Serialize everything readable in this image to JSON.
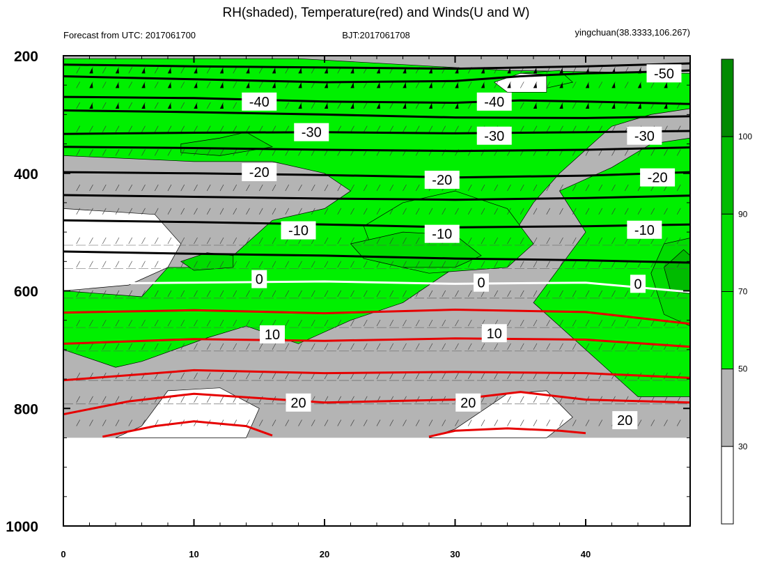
{
  "chart_data": {
    "type": "heatmap",
    "title": "RH(shaded), Temperature(red) and Winds(U and W)",
    "subtitle_left": "Forecast from UTC: 2017061700",
    "subtitle_center": "BJT:2017061708",
    "subtitle_right": "yingchuan(38.3333,106.267)",
    "xlabel": "",
    "ylabel": "",
    "x_range": [
      0,
      48
    ],
    "y_range": [
      200,
      1000
    ],
    "y_reversed": true,
    "x_tick_labels": [
      "0",
      "10",
      "20",
      "30",
      "40"
    ],
    "y_tick_labels": [
      "200",
      "400",
      "600",
      "800",
      "1000"
    ],
    "colorbar": {
      "levels": [
        "30",
        "50",
        "70",
        "90",
        "100"
      ],
      "colors": [
        "#ffffff",
        "#b4b4b4",
        "#00f000",
        "#00dc00",
        "#00bb00",
        "#008a00"
      ]
    },
    "rh_regions": [
      {
        "level": 1,
        "points": [
          [
            0,
            200
          ],
          [
            48,
            200
          ],
          [
            48,
            850
          ],
          [
            0,
            850
          ]
        ]
      },
      {
        "level": 2,
        "points": [
          [
            0,
            205
          ],
          [
            18,
            205
          ],
          [
            26,
            215
          ],
          [
            34,
            225
          ],
          [
            48,
            230
          ],
          [
            48,
            290
          ],
          [
            45,
            300
          ],
          [
            42,
            320
          ],
          [
            40,
            360
          ],
          [
            38,
            400
          ],
          [
            36,
            450
          ],
          [
            34,
            520
          ],
          [
            30,
            560
          ],
          [
            26,
            620
          ],
          [
            22,
            650
          ],
          [
            18,
            690
          ],
          [
            14,
            660
          ],
          [
            11,
            680
          ],
          [
            6,
            720
          ],
          [
            4,
            730
          ],
          [
            0,
            700
          ],
          [
            0,
            600
          ],
          [
            6,
            610
          ],
          [
            8,
            560
          ],
          [
            12,
            560
          ],
          [
            14,
            520
          ],
          [
            16,
            480
          ],
          [
            20,
            460
          ],
          [
            22,
            430
          ],
          [
            20,
            400
          ],
          [
            16,
            380
          ],
          [
            10,
            380
          ],
          [
            0,
            370
          ]
        ]
      },
      {
        "level": 2,
        "points": [
          [
            23,
            490
          ],
          [
            26,
            450
          ],
          [
            30,
            430
          ],
          [
            34,
            460
          ],
          [
            36,
            520
          ],
          [
            34,
            560
          ],
          [
            28,
            570
          ],
          [
            24,
            550
          ]
        ]
      },
      {
        "level": 2,
        "points": [
          [
            38,
            430
          ],
          [
            42,
            390
          ],
          [
            45,
            350
          ],
          [
            48,
            340
          ],
          [
            48,
            780
          ],
          [
            44,
            780
          ],
          [
            42,
            740
          ],
          [
            40,
            700
          ],
          [
            38,
            660
          ],
          [
            36,
            620
          ],
          [
            38,
            560
          ],
          [
            40,
            500
          ]
        ]
      },
      {
        "level": 2,
        "points": [
          [
            35,
            230
          ],
          [
            38,
            225
          ],
          [
            39,
            245
          ],
          [
            36,
            260
          ]
        ]
      },
      {
        "level": 3,
        "points": [
          [
            22,
            520
          ],
          [
            26,
            500
          ],
          [
            30,
            505
          ],
          [
            32,
            540
          ],
          [
            30,
            560
          ],
          [
            26,
            560
          ],
          [
            23,
            545
          ]
        ]
      },
      {
        "level": 3,
        "points": [
          [
            45,
            570
          ],
          [
            46,
            520
          ],
          [
            48,
            510
          ],
          [
            48,
            660
          ],
          [
            46,
            640
          ]
        ]
      },
      {
        "level": 3,
        "points": [
          [
            9,
            350
          ],
          [
            12,
            340
          ],
          [
            14,
            330
          ],
          [
            16,
            355
          ],
          [
            12,
            370
          ],
          [
            9,
            365
          ]
        ]
      },
      {
        "level": 3,
        "points": [
          [
            9,
            550
          ],
          [
            11,
            535
          ],
          [
            13,
            540
          ],
          [
            13,
            560
          ],
          [
            10,
            565
          ]
        ]
      },
      {
        "level": 4,
        "points": [
          [
            46,
            560
          ],
          [
            47.5,
            530
          ],
          [
            48,
            540
          ],
          [
            48,
            605
          ],
          [
            46.5,
            600
          ]
        ]
      },
      {
        "level": 0,
        "points": [
          [
            0,
            460
          ],
          [
            7,
            470
          ],
          [
            9,
            520
          ],
          [
            8,
            560
          ],
          [
            5,
            590
          ],
          [
            0,
            600
          ]
        ]
      },
      {
        "level": 0,
        "points": [
          [
            6,
            830
          ],
          [
            8,
            770
          ],
          [
            12,
            765
          ],
          [
            15,
            800
          ],
          [
            14,
            850
          ],
          [
            4,
            850
          ]
        ]
      },
      {
        "level": 0,
        "points": [
          [
            30,
            835
          ],
          [
            34,
            775
          ],
          [
            37,
            770
          ],
          [
            39,
            815
          ],
          [
            37,
            850
          ],
          [
            28,
            850
          ]
        ]
      },
      {
        "level": 0,
        "points": [
          [
            33,
            245
          ],
          [
            35,
            230
          ],
          [
            37,
            232
          ],
          [
            37,
            262
          ],
          [
            34,
            262
          ]
        ]
      }
    ],
    "temperature_contours": [
      {
        "label": "-50",
        "color": "#000000",
        "label_at": [
          46,
          230
        ],
        "points": [
          [
            0,
            235
          ],
          [
            10,
            240
          ],
          [
            20,
            245
          ],
          [
            30,
            243
          ],
          [
            35,
            235
          ],
          [
            40,
            230
          ],
          [
            44,
            228
          ],
          [
            48,
            225
          ]
        ]
      },
      {
        "label": "",
        "color": "#000000",
        "label_at": null,
        "points": [
          [
            0,
            215
          ],
          [
            10,
            218
          ],
          [
            20,
            220
          ],
          [
            30,
            222
          ],
          [
            40,
            218
          ],
          [
            48,
            213
          ]
        ]
      },
      {
        "label": "-40",
        "color": "#000000",
        "label_at": [
          15,
          278
        ],
        "points": [
          [
            0,
            270
          ],
          [
            10,
            272
          ],
          [
            20,
            278
          ],
          [
            30,
            280
          ],
          [
            35,
            276
          ],
          [
            40,
            278
          ],
          [
            48,
            282
          ]
        ]
      },
      {
        "label": "",
        "color": "#000000",
        "label_at": null,
        "points": [
          [
            0,
            293
          ],
          [
            10,
            296
          ],
          [
            20,
            300
          ],
          [
            30,
            305
          ],
          [
            40,
            306
          ],
          [
            48,
            303
          ]
        ]
      },
      {
        "label": "-30",
        "color": "#000000",
        "label_at": [
          19,
          328
        ],
        "points": [
          [
            0,
            333
          ],
          [
            10,
            331
          ],
          [
            20,
            330
          ],
          [
            30,
            332
          ],
          [
            40,
            330
          ],
          [
            48,
            328
          ]
        ]
      },
      {
        "label": "",
        "color": "#000000",
        "label_at": null,
        "points": [
          [
            0,
            355
          ],
          [
            10,
            357
          ],
          [
            20,
            360
          ],
          [
            30,
            362
          ],
          [
            40,
            360
          ],
          [
            48,
            356
          ]
        ]
      },
      {
        "label": "-20",
        "color": "#000000",
        "label_at": [
          15,
          398
        ],
        "points": [
          [
            0,
            398
          ],
          [
            10,
            400
          ],
          [
            20,
            403
          ],
          [
            30,
            407
          ],
          [
            40,
            404
          ],
          [
            48,
            398
          ]
        ]
      },
      {
        "label": "",
        "color": "#000000",
        "label_at": null,
        "points": [
          [
            0,
            437
          ],
          [
            10,
            440
          ],
          [
            20,
            443
          ],
          [
            30,
            445
          ],
          [
            40,
            442
          ],
          [
            48,
            438
          ]
        ]
      },
      {
        "label": "-10",
        "color": "#000000",
        "label_at": [
          18,
          497
        ],
        "points": [
          [
            0,
            480
          ],
          [
            10,
            483
          ],
          [
            20,
            487
          ],
          [
            30,
            492
          ],
          [
            40,
            490
          ],
          [
            48,
            487
          ]
        ]
      },
      {
        "label": "",
        "color": "#000000",
        "label_at": null,
        "points": [
          [
            0,
            533
          ],
          [
            10,
            537
          ],
          [
            20,
            540
          ],
          [
            30,
            545
          ],
          [
            40,
            548
          ],
          [
            48,
            552
          ]
        ]
      },
      {
        "label": "0",
        "color": "#ffffff",
        "label_at": [
          15,
          579
        ],
        "points": [
          [
            0,
            588
          ],
          [
            10,
            586
          ],
          [
            20,
            584
          ],
          [
            30,
            588
          ],
          [
            40,
            586
          ],
          [
            48,
            602
          ]
        ]
      },
      {
        "label": "",
        "color": "#e60000",
        "label_at": null,
        "points": [
          [
            0,
            637
          ],
          [
            10,
            633
          ],
          [
            20,
            638
          ],
          [
            30,
            632
          ],
          [
            40,
            636
          ],
          [
            48,
            656
          ]
        ]
      },
      {
        "label": "10",
        "color": "#e60000",
        "label_at": [
          16,
          674
        ],
        "points": [
          [
            0,
            690
          ],
          [
            10,
            682
          ],
          [
            20,
            685
          ],
          [
            30,
            681
          ],
          [
            40,
            683
          ],
          [
            48,
            695
          ]
        ]
      },
      {
        "label": "",
        "color": "#e60000",
        "label_at": null,
        "points": [
          [
            0,
            752
          ],
          [
            10,
            735
          ],
          [
            20,
            740
          ],
          [
            30,
            738
          ],
          [
            40,
            740
          ],
          [
            48,
            748
          ]
        ]
      },
      {
        "label": "20",
        "color": "#e60000",
        "label_at": [
          18,
          790
        ],
        "points": [
          [
            0,
            810
          ],
          [
            5,
            788
          ],
          [
            10,
            775
          ],
          [
            20,
            790
          ],
          [
            30,
            785
          ],
          [
            35,
            772
          ],
          [
            40,
            785
          ],
          [
            48,
            790
          ]
        ]
      },
      {
        "label": "",
        "color": "#e60000",
        "label_at": null,
        "points": [
          [
            3,
            848
          ],
          [
            7,
            830
          ],
          [
            10,
            822
          ],
          [
            14,
            830
          ],
          [
            16,
            846
          ]
        ]
      },
      {
        "label": "",
        "color": "#e60000",
        "label_at": null,
        "points": [
          [
            28,
            848
          ],
          [
            30,
            838
          ],
          [
            34,
            834
          ],
          [
            38,
            838
          ],
          [
            40,
            842
          ]
        ]
      }
    ],
    "inline_labels": [
      {
        "text": "-50",
        "x": 46,
        "y": 230
      },
      {
        "text": "-40",
        "x": 15,
        "y": 278
      },
      {
        "text": "-40",
        "x": 33,
        "y": 278
      },
      {
        "text": "-30",
        "x": 19,
        "y": 330
      },
      {
        "text": "-30",
        "x": 33,
        "y": 336
      },
      {
        "text": "-30",
        "x": 44.5,
        "y": 336
      },
      {
        "text": "-20",
        "x": 15,
        "y": 398
      },
      {
        "text": "-20",
        "x": 29,
        "y": 411
      },
      {
        "text": "-20",
        "x": 45.5,
        "y": 407
      },
      {
        "text": "-10",
        "x": 18,
        "y": 497
      },
      {
        "text": "-10",
        "x": 29,
        "y": 503
      },
      {
        "text": "-10",
        "x": 44.5,
        "y": 496
      },
      {
        "text": "0",
        "x": 15,
        "y": 580
      },
      {
        "text": "0",
        "x": 32,
        "y": 586
      },
      {
        "text": "0",
        "x": 44,
        "y": 588
      },
      {
        "text": "10",
        "x": 16,
        "y": 674
      },
      {
        "text": "10",
        "x": 33,
        "y": 672
      },
      {
        "text": "20",
        "x": 18,
        "y": 790
      },
      {
        "text": "20",
        "x": 31,
        "y": 790
      },
      {
        "text": "20",
        "x": 43,
        "y": 820
      }
    ]
  }
}
